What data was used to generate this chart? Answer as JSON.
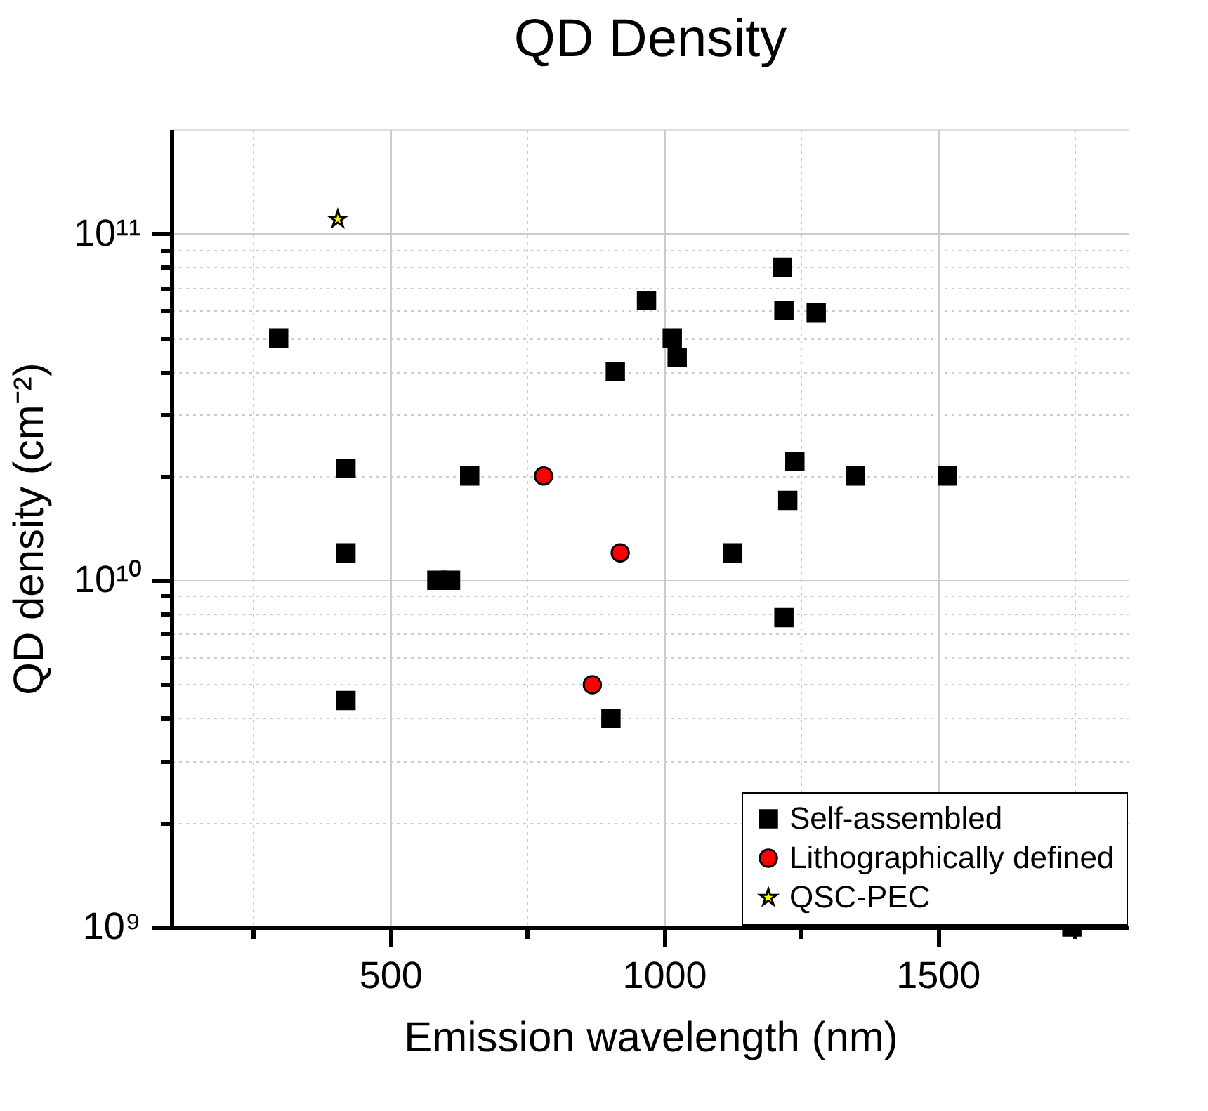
{
  "chart_data": {
    "type": "scatter",
    "title": "QD Density",
    "xlabel": "Emission wavelength (nm)",
    "ylabel": "QD density (cm⁻²)",
    "log": "y",
    "grid": true,
    "legend": "bottom right",
    "xlim": [
      100,
      1850
    ],
    "xticks": [
      {
        "value": 250,
        "label": null
      },
      500,
      {
        "value": 750,
        "label": null
      },
      1000,
      {
        "value": 1250,
        "label": null
      },
      1500,
      {
        "value": 1750,
        "label": null
      }
    ],
    "ylim": [
      1000000000,
      200000000000
    ],
    "yticks": [
      {
        "value": 1000000000,
        "label": "10⁹"
      },
      {
        "value": 2000000000,
        "label": null
      },
      {
        "value": 3000000000,
        "label": null
      },
      {
        "value": 4000000000,
        "label": null
      },
      {
        "value": 5000000000,
        "label": null
      },
      {
        "value": 6000000000,
        "label": null
      },
      {
        "value": 7000000000,
        "label": null
      },
      {
        "value": 8000000000,
        "label": null
      },
      {
        "value": 9000000000,
        "label": null
      },
      {
        "value": 10000000000,
        "label": "10¹⁰"
      },
      {
        "value": 20000000000,
        "label": null
      },
      {
        "value": 30000000000,
        "label": null
      },
      {
        "value": 40000000000,
        "label": null
      },
      {
        "value": 50000000000,
        "label": null
      },
      {
        "value": 60000000000,
        "label": null
      },
      {
        "value": 70000000000,
        "label": null
      },
      {
        "value": 80000000000,
        "label": null
      },
      {
        "value": 90000000000,
        "label": null
      },
      {
        "value": 100000000000,
        "label": "10¹¹"
      }
    ],
    "series": [
      {
        "name": "Self-assembled",
        "color": "#000000",
        "marker": "square",
        "x": [
          296,
          419,
          419,
          419,
          645,
          585,
          610,
          911,
          968,
          1015,
          1024,
          1125,
          1216,
          1219,
          1278,
          1239,
          1350,
          1518,
          1226,
          1219,
          903,
          1745
        ],
        "values": [
          50000000000,
          21000000000,
          12000000000,
          4500000000,
          20000000000,
          10000000000,
          10000000000,
          40000000000,
          64000000000,
          50000000000,
          44000000000,
          12000000000,
          80000000000,
          60000000000,
          59000000000,
          22000000000,
          20000000000,
          20000000000,
          17000000000,
          7800000000,
          4000000000,
          1000000000
        ]
      },
      {
        "name": "Lithographically defined",
        "color": "#ff0000",
        "marker": "circle",
        "x": [
          780,
          920,
          869
        ],
        "values": [
          20000000000,
          12000000000,
          5000000000
        ]
      },
      {
        "name": "QSC-PEC",
        "color": "#ffff00",
        "marker": "star",
        "x": [
          404
        ],
        "values": [
          110000000000
        ]
      }
    ]
  }
}
